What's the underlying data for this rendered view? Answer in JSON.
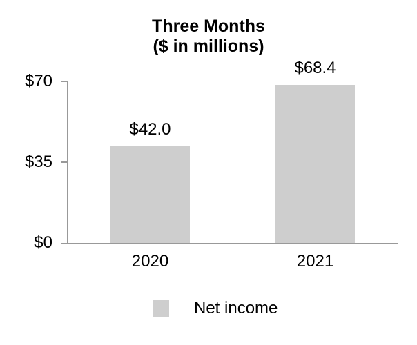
{
  "chart_data": {
    "type": "bar",
    "title": "Three Months",
    "subtitle": "($ in millions)",
    "categories": [
      "2020",
      "2021"
    ],
    "series": [
      {
        "name": "Net income",
        "values": [
          42.0,
          68.4
        ],
        "value_labels": [
          "$42.0",
          "$68.4"
        ],
        "color": "#cecece"
      }
    ],
    "ylim": [
      0,
      70
    ],
    "yticks": [
      {
        "value": 0,
        "label": "$0"
      },
      {
        "value": 35,
        "label": "$35"
      },
      {
        "value": 70,
        "label": "$70"
      }
    ],
    "grid": false,
    "legend_position": "bottom",
    "legend": [
      {
        "label": "Net income",
        "swatch_color": "#cecece"
      }
    ],
    "axis_color": "#999999",
    "text_color": "#000000",
    "background_color": "#ffffff"
  }
}
